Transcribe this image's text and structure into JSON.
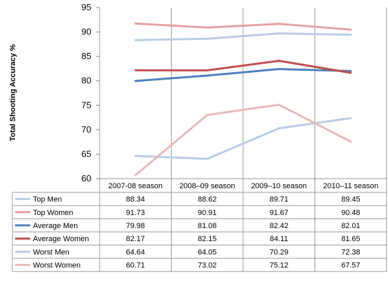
{
  "chart_data": {
    "type": "line",
    "title": "",
    "xlabel": "",
    "ylabel": "Total Shooting Accuracy %",
    "ylim": [
      60,
      95
    ],
    "yticks": [
      60,
      65,
      70,
      75,
      80,
      85,
      90,
      95
    ],
    "grid": "vertical category lines",
    "legend": "data table below chart",
    "categories": [
      "2007-08 season",
      "2008–09 season",
      "2009–10 season",
      "2010–11 season"
    ],
    "series": [
      {
        "name": "Top Men",
        "color": "#b9cde5",
        "values": [
          88.34,
          88.62,
          89.71,
          89.45
        ]
      },
      {
        "name": "Top Women",
        "color": "#e6a0a0",
        "values": [
          91.73,
          90.91,
          91.67,
          90.48
        ]
      },
      {
        "name": "Average Men",
        "color": "#4f81bd",
        "values": [
          79.98,
          81.08,
          82.42,
          82.01
        ]
      },
      {
        "name": "Average Women",
        "color": "#c0504d",
        "values": [
          82.17,
          82.15,
          84.11,
          81.65
        ]
      },
      {
        "name": "Worst Men",
        "color": "#b9cde5",
        "values": [
          64.64,
          64.05,
          70.29,
          72.38
        ]
      },
      {
        "name": "Worst Women",
        "color": "#e6b9b8",
        "values": [
          60.71,
          73.02,
          75.12,
          67.57
        ]
      }
    ],
    "table_values": [
      [
        "88.34",
        "88.62",
        "89.71",
        "89.45"
      ],
      [
        "91.73",
        "90.91",
        "91.67",
        "90.48"
      ],
      [
        "79.98",
        "81.08",
        "82.42",
        "82.01"
      ],
      [
        "82.17",
        "82.15",
        "84.11",
        "81.65"
      ],
      [
        "64.64",
        "64.05",
        "70.29",
        "72.38"
      ],
      [
        "60.71",
        "73.02",
        "75.12",
        "67.57"
      ]
    ]
  }
}
